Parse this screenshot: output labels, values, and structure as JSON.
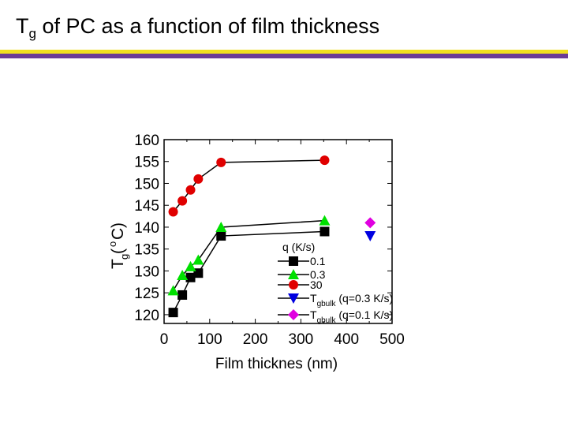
{
  "slide": {
    "title_pre": "T",
    "title_sub": "g",
    "title_post": " of PC as a function of film thickness"
  },
  "colors": {
    "rule_yellow": "#f0e020",
    "rule_purple": "#6a3c96"
  },
  "chart_data": {
    "type": "scatter",
    "title": "",
    "xlabel": "Film thicknes (nm)",
    "ylabel_main": "T",
    "ylabel_sub": "g",
    "ylabel_unit_sup": "o",
    "ylabel_unit": "C",
    "ylabel_paren_open": "(",
    "ylabel_paren_close": ")",
    "xlim": [
      0,
      500
    ],
    "ylim": [
      118,
      160
    ],
    "xticks": [
      0,
      100,
      200,
      300,
      400,
      500
    ],
    "yticks": [
      120,
      125,
      130,
      135,
      140,
      145,
      150,
      155,
      160
    ],
    "grid": false,
    "legend_title": "q (K/s)",
    "legend_position": "lower-right",
    "series": [
      {
        "name": "0.1",
        "marker": "square",
        "color": "#000000",
        "line": true,
        "x": [
          20,
          40,
          58,
          75,
          125,
          352
        ],
        "y": [
          120.5,
          124.5,
          128.5,
          129.5,
          138,
          139
        ]
      },
      {
        "name": "0.3",
        "marker": "triangle-up",
        "color": "#00e000",
        "line": true,
        "x": [
          20,
          40,
          58,
          75,
          125,
          352
        ],
        "y": [
          125.5,
          129,
          131,
          132.5,
          140,
          141.5
        ]
      },
      {
        "name": "30",
        "marker": "circle",
        "color": "#e00000",
        "line": true,
        "x": [
          20,
          40,
          58,
          75,
          125,
          352
        ],
        "y": [
          143.5,
          146,
          148.5,
          151,
          154.8,
          155.3
        ]
      },
      {
        "name": "T",
        "name_sub": "gbulk",
        "name_rest": " (q=0.3 K/s)",
        "marker": "triangle-down",
        "color": "#0000e0",
        "line": false,
        "x": [
          452
        ],
        "y": [
          138
        ]
      },
      {
        "name": "T",
        "name_sub": "gbulk",
        "name_rest": " (q=0.1 K/s)",
        "marker": "diamond",
        "color": "#e000e0",
        "line": false,
        "x": [
          452
        ],
        "y": [
          141
        ]
      }
    ]
  }
}
